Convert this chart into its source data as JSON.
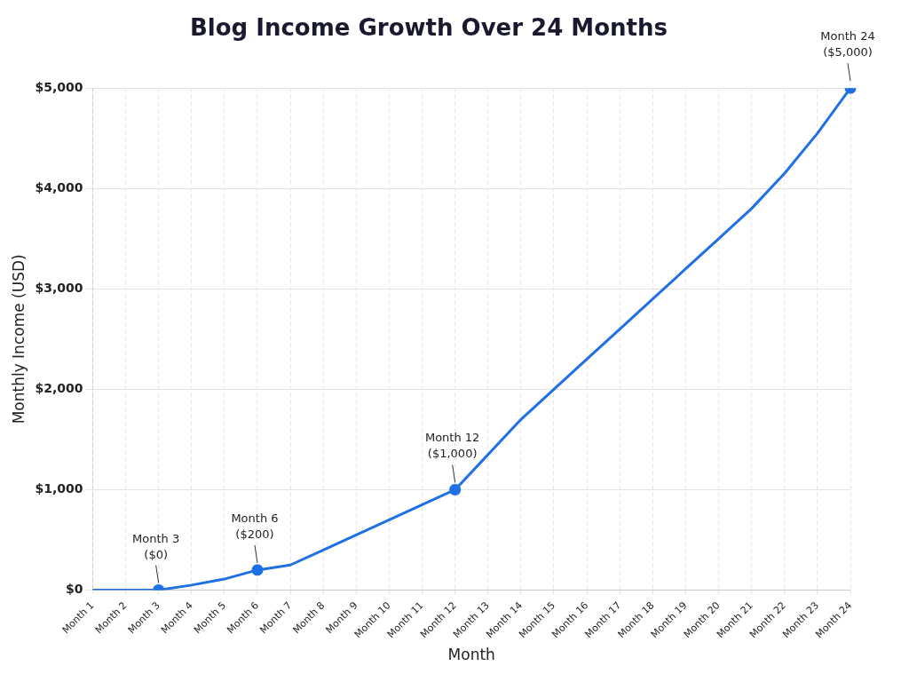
{
  "chart_data": {
    "type": "line",
    "title": "Blog Income Growth Over 24 Months",
    "xlabel": "Month",
    "ylabel": "Monthly Income (USD)",
    "categories": [
      "Month 1",
      "Month 2",
      "Month 3",
      "Month 4",
      "Month 5",
      "Month 6",
      "Month 7",
      "Month 8",
      "Month 9",
      "Month 10",
      "Month 11",
      "Month 12",
      "Month 13",
      "Month 14",
      "Month 15",
      "Month 16",
      "Month 17",
      "Month 18",
      "Month 19",
      "Month 20",
      "Month 21",
      "Month 22",
      "Month 23",
      "Month 24"
    ],
    "series": [
      {
        "color": "#1f6fe5",
        "values": [
          0,
          0,
          0,
          50,
          110,
          200,
          250,
          400,
          550,
          700,
          850,
          1000,
          1350,
          1700,
          2000,
          2300,
          2600,
          2900,
          3200,
          3500,
          3800,
          4150,
          4550,
          5000
        ]
      },
      {
        "type": "scatter",
        "color": "#1f6fe5",
        "marker": "circle",
        "x": [
          "Month 3",
          "Month 6",
          "Month 12",
          "Month 24"
        ],
        "values": [
          0,
          200,
          1000,
          5000
        ]
      }
    ],
    "ylim": [
      0,
      5000
    ],
    "yticks": [
      {
        "value": 0,
        "label": "$0"
      },
      {
        "value": 1000,
        "label": "$1,000"
      },
      {
        "value": 2000,
        "label": "$2,000"
      },
      {
        "value": 3000,
        "label": "$3,000"
      },
      {
        "value": 4000,
        "label": "$4,000"
      },
      {
        "value": 5000,
        "label": "$5,000"
      }
    ],
    "annotations": [
      {
        "text": "Month 3\n($0)",
        "x": "Month 3",
        "y": 0
      },
      {
        "text": "Month 6\n($200)",
        "x": "Month 6",
        "y": 200
      },
      {
        "text": "Month 12\n($1,000)",
        "x": "Month 12",
        "y": 1000
      },
      {
        "text": "Month 24\n($5,000)",
        "x": "Month 24",
        "y": 5000
      }
    ],
    "grid": true,
    "line_style": "solid",
    "legend": false
  }
}
